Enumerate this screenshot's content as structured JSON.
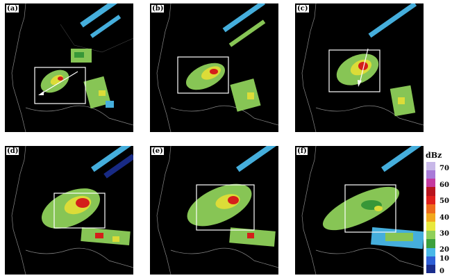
{
  "panels": [
    {
      "label": "(a)"
    },
    {
      "label": "(b)"
    },
    {
      "label": "(c)"
    },
    {
      "label": "(d)"
    },
    {
      "label": "(e)"
    },
    {
      "label": "(f)"
    }
  ],
  "colorbar": {
    "unit": "dBz",
    "ticks": [
      "70",
      "60",
      "50",
      "40",
      "30",
      "20",
      "10",
      "0"
    ],
    "colors": [
      "#1a2d8c",
      "#2e5fd6",
      "#49b8e8",
      "#3ca03c",
      "#8fd05a",
      "#e8e83c",
      "#f2a81c",
      "#ee6b1b",
      "#e0201c",
      "#b8141e",
      "#c43aa0",
      "#a87ad8",
      "#c8b8e8"
    ]
  }
}
